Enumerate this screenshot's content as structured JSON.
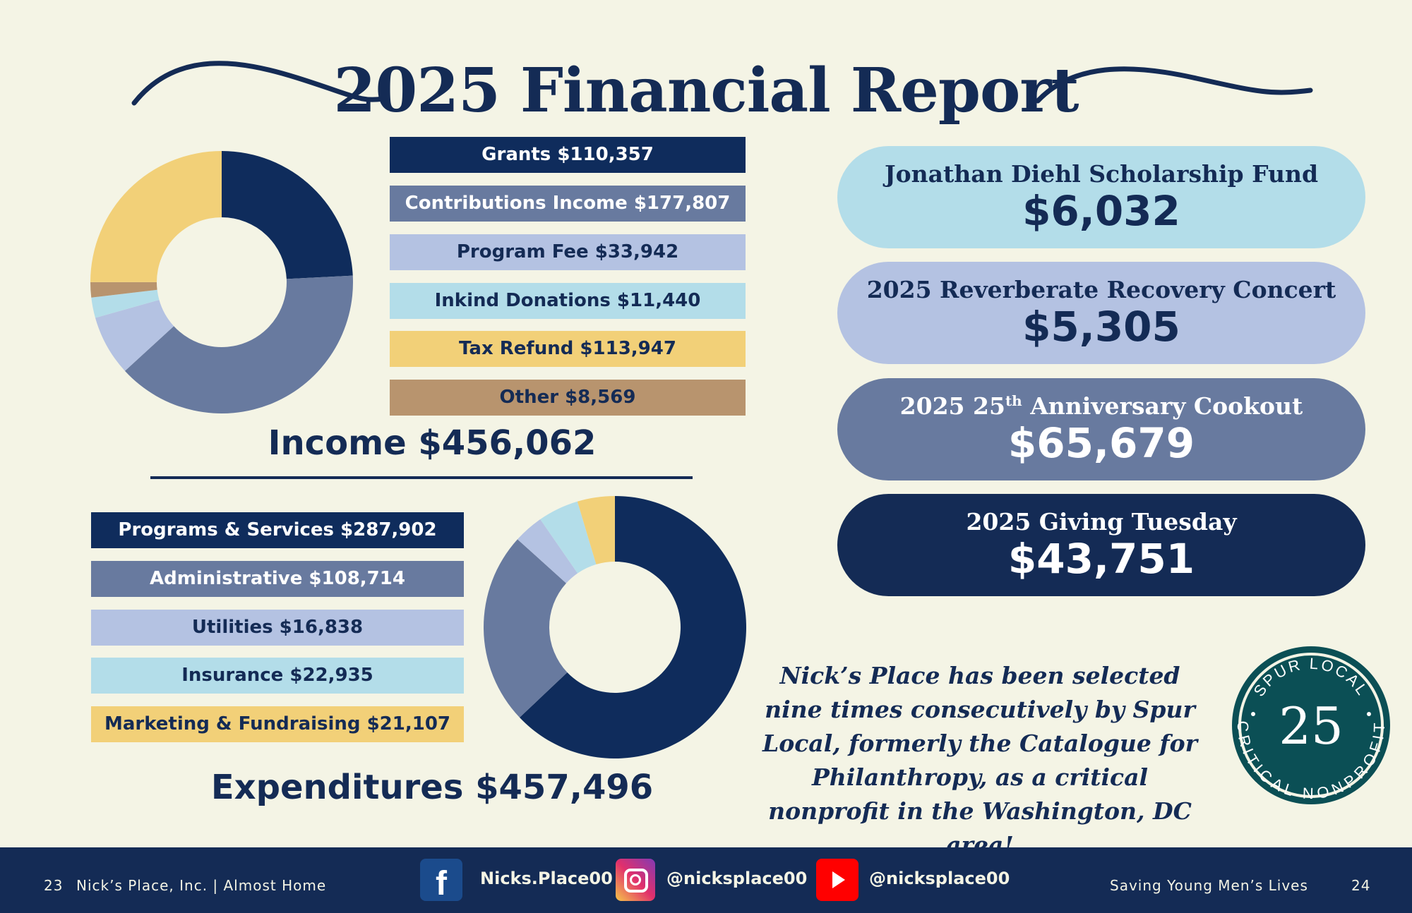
{
  "title": "2025 Financial Report",
  "colors": {
    "navy": "#0f2c5c",
    "slate": "#687a9f",
    "lavender": "#b4c2e2",
    "lightblue": "#b3dde9",
    "yellow": "#f2d078",
    "brown": "#b8946e",
    "background": "#f4f4e5",
    "badge": "#0b4f55"
  },
  "income": {
    "total_label": "Income $456,062",
    "items": [
      {
        "label": "Grants $110,357"
      },
      {
        "label": "Contributions Income $177,807"
      },
      {
        "label": "Program Fee $33,942"
      },
      {
        "label": "Inkind Donations $11,440"
      },
      {
        "label": "Tax Refund $113,947"
      },
      {
        "label": "Other $8,569"
      }
    ]
  },
  "expenditures": {
    "total_label": "Expenditures $457,496",
    "items": [
      {
        "label": "Programs & Services $287,902"
      },
      {
        "label": "Administrative $108,714"
      },
      {
        "label": "Utilities $16,838"
      },
      {
        "label": "Insurance $22,935"
      },
      {
        "label": "Marketing & Fundraising $21,107"
      }
    ]
  },
  "chart_data": [
    {
      "type": "pie",
      "categories": [
        "Grants",
        "Contributions Income",
        "Program Fee",
        "Inkind Donations",
        "Other",
        "Tax Refund"
      ],
      "values": [
        110357,
        177807,
        33942,
        11440,
        8569,
        113947
      ],
      "colors": [
        "#0f2c5c",
        "#687a9f",
        "#b4c2e2",
        "#b3dde9",
        "#b8946e",
        "#f2d078"
      ]
    },
    {
      "type": "pie",
      "categories": [
        "Programs & Services",
        "Administrative",
        "Utilities",
        "Insurance",
        "Marketing & Fundraising"
      ],
      "values": [
        287902,
        108714,
        16838,
        22935,
        21107
      ],
      "colors": [
        "#0f2c5c",
        "#687a9f",
        "#b4c2e2",
        "#b3dde9",
        "#f2d078"
      ]
    }
  ],
  "events": [
    {
      "title": "Jonathan Diehl Scholarship Fund",
      "amount": "$6,032"
    },
    {
      "title": "2025 Reverberate Recovery Concert",
      "amount": "$5,305"
    },
    {
      "title_pre": "2025 25",
      "title_sup": "th",
      "title_post": " Anniversary Cookout",
      "amount": "$65,679"
    },
    {
      "title": "2025 Giving Tuesday",
      "amount": "$43,751"
    }
  ],
  "quote": "Nick’s Place has been selected nine times consecutively by Spur Local, formerly the Catalogue for Philanthropy, as a critical nonprofit in the Washington, DC area!",
  "badge": {
    "top": "SPUR LOCAL",
    "number": "25",
    "bottom": "CRITICAL NONPROFIT"
  },
  "footer": {
    "left_page": "23",
    "left_text": "Nick’s Place, Inc. |  Almost Home",
    "facebook": "Nicks.Place00",
    "instagram": "@nicksplace00",
    "youtube": "@nicksplace00",
    "right_text": "Saving Young Men’s Lives",
    "right_page": "24"
  }
}
